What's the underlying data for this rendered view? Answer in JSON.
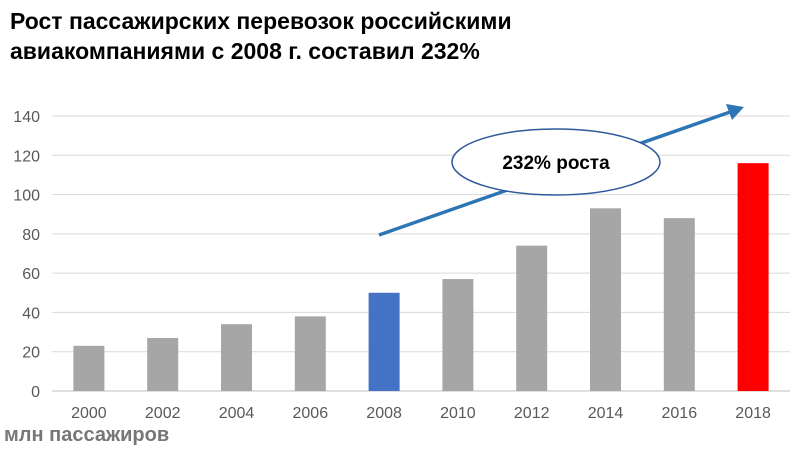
{
  "title_line1": "Рост пассажирских перевозок российскими",
  "title_line2": "авиакомпаниями с 2008 г. составил 232%",
  "unit_label": "млн пассажиров",
  "chart_data": {
    "type": "bar",
    "categories": [
      "2000",
      "2002",
      "2004",
      "2006",
      "2008",
      "2010",
      "2012",
      "2014",
      "2016",
      "2018"
    ],
    "values": [
      23,
      27,
      34,
      38,
      50,
      57,
      74,
      93,
      88,
      116
    ],
    "bar_colors": [
      "#a6a6a6",
      "#a6a6a6",
      "#a6a6a6",
      "#a6a6a6",
      "#4472c4",
      "#a6a6a6",
      "#a6a6a6",
      "#a6a6a6",
      "#a6a6a6",
      "#ff0000"
    ],
    "ylim": [
      0,
      140
    ],
    "yticks": [
      0,
      20,
      40,
      60,
      80,
      100,
      120,
      140
    ],
    "grid": true,
    "annotation": "232% роста",
    "arrow_color": "#2e75b6"
  }
}
